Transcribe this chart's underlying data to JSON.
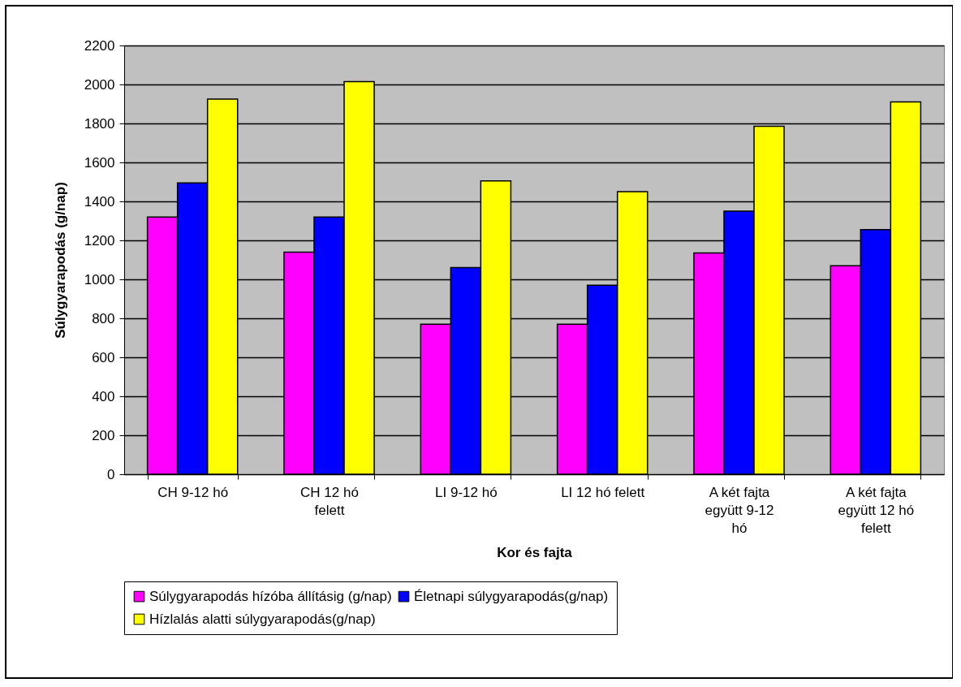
{
  "chart_data": {
    "type": "bar",
    "xlabel": "Kor és fajta",
    "ylabel": "Súlygyarapodás (g/nap)",
    "categories": [
      "CH 9-12 hó",
      "CH 12 hó felett",
      "LI 9-12 hó",
      "LI 12 hó felett",
      "A két fajta együtt 9-12 hó",
      "A két fajta együtt 12 hó felett"
    ],
    "series": [
      {
        "name": "Súlygyarapodás hízóba állításig (g/nap)",
        "color": "#ff00ff",
        "values": [
          1320,
          1140,
          770,
          770,
          1135,
          1070
        ]
      },
      {
        "name": "Életnapi súlygyarapodás(g/nap)",
        "color": "#0000ff",
        "values": [
          1495,
          1320,
          1060,
          970,
          1350,
          1255
        ]
      },
      {
        "name": "Hízlalás alatti súlygyarapodás(g/nap)",
        "color": "#ffff00",
        "values": [
          1925,
          2015,
          1505,
          1450,
          1785,
          1910
        ]
      }
    ],
    "ylim": [
      0,
      2200
    ],
    "yticks": [
      0,
      200,
      400,
      600,
      800,
      1000,
      1200,
      1400,
      1600,
      1800,
      2000,
      2200
    ],
    "grid": true,
    "legend": "bottom"
  }
}
